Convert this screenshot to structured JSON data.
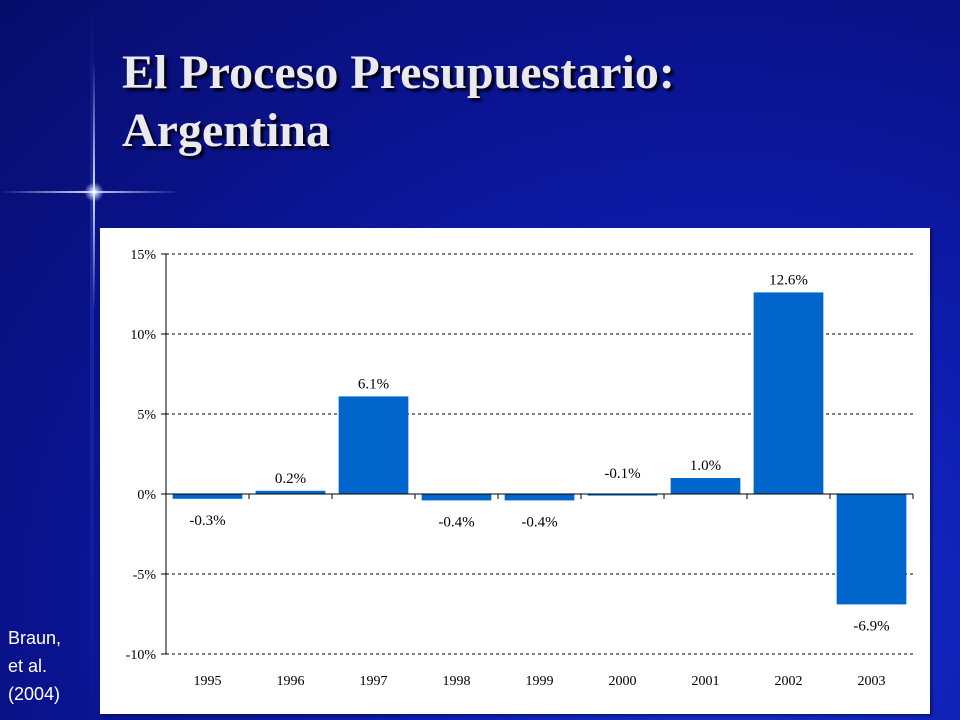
{
  "slide": {
    "title_line1": "El Proceso Presupuestario:",
    "title_line2": "Argentina",
    "source_line1": "Braun,",
    "source_line2": "et al.",
    "source_line3": "(2004)"
  },
  "colors": {
    "bar": "#0066CC",
    "background": "#0a128a",
    "title": "#e9e9ee"
  },
  "chart_data": {
    "type": "bar",
    "title": "",
    "xlabel": "",
    "ylabel": "",
    "categories": [
      "1995",
      "1996",
      "1997",
      "1998",
      "1999",
      "2000",
      "2001",
      "2002",
      "2003"
    ],
    "values": [
      -0.3,
      0.2,
      6.1,
      -0.4,
      -0.4,
      -0.1,
      1.0,
      12.6,
      -6.9
    ],
    "data_labels": [
      "-0.3%",
      "0.2%",
      "6.1%",
      "-0.4%",
      "-0.4%",
      "-0.1%",
      "1.0%",
      "12.6%",
      "-6.9%"
    ],
    "ylim": [
      -10,
      15
    ],
    "yticks": [
      15,
      10,
      5,
      0,
      -5,
      -10
    ],
    "ytick_labels": [
      "15%",
      "10%",
      "5%",
      "0%",
      "-5%",
      "-10%"
    ],
    "grid": true,
    "legend": "none"
  }
}
